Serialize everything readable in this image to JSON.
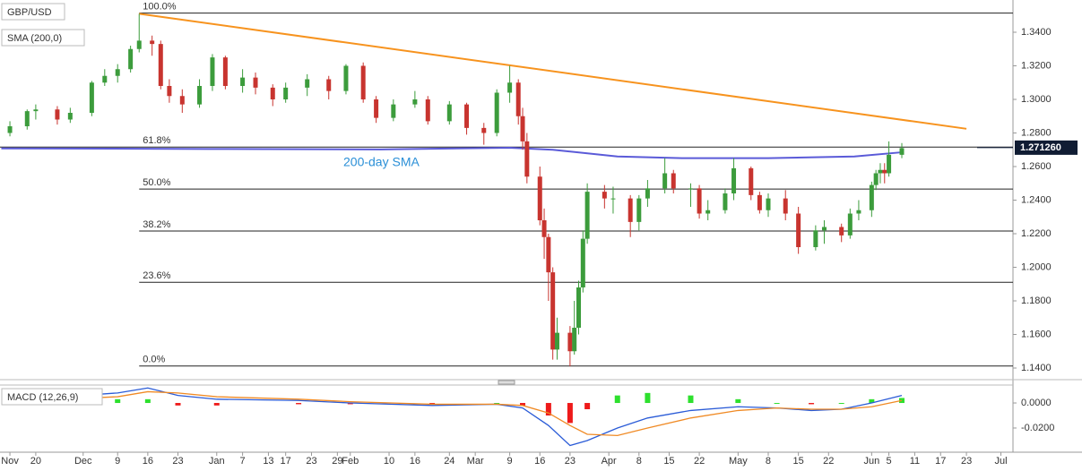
{
  "chart_data": [
    {
      "type": "candlestick",
      "legend": [
        "GBP/USD",
        "SMA (200,0)"
      ],
      "annotation": "200-day SMA",
      "up_color": "#3c9c3c",
      "down_color": "#c8342f",
      "xlim": [
        11.7,
        246.8
      ],
      "ylim": [
        1.1352,
        1.3592
      ],
      "xticks": [
        {
          "value": 14,
          "label": "Nov"
        },
        {
          "value": 20,
          "label": "20"
        },
        {
          "value": 31,
          "label": "Dec"
        },
        {
          "value": 39,
          "label": "9"
        },
        {
          "value": 46,
          "label": "16"
        },
        {
          "value": 53,
          "label": "23"
        },
        {
          "value": 62,
          "label": "Jan"
        },
        {
          "value": 68,
          "label": "7"
        },
        {
          "value": 74,
          "label": "13"
        },
        {
          "value": 78,
          "label": "17"
        },
        {
          "value": 84,
          "label": "23"
        },
        {
          "value": 90,
          "label": "29"
        },
        {
          "value": 93,
          "label": "Feb"
        },
        {
          "value": 102,
          "label": "10"
        },
        {
          "value": 108,
          "label": "16"
        },
        {
          "value": 116,
          "label": "24"
        },
        {
          "value": 122,
          "label": "Mar"
        },
        {
          "value": 130,
          "label": "9"
        },
        {
          "value": 137,
          "label": "16"
        },
        {
          "value": 144,
          "label": "23"
        },
        {
          "value": 153,
          "label": "Apr"
        },
        {
          "value": 160,
          "label": "8"
        },
        {
          "value": 167,
          "label": "15"
        },
        {
          "value": 174,
          "label": "22"
        },
        {
          "value": 183,
          "label": "May"
        },
        {
          "value": 190,
          "label": "8"
        },
        {
          "value": 197,
          "label": "15"
        },
        {
          "value": 204,
          "label": "22"
        },
        {
          "value": 214,
          "label": "Jun"
        },
        {
          "value": 218,
          "label": "5"
        },
        {
          "value": 224,
          "label": "11"
        },
        {
          "value": 230,
          "label": "17"
        },
        {
          "value": 236,
          "label": "23"
        },
        {
          "value": 244,
          "label": "Jul"
        }
      ],
      "yticks": [
        {
          "value": 1.34,
          "label": "1.3400"
        },
        {
          "value": 1.32,
          "label": "1.3200"
        },
        {
          "value": 1.3,
          "label": "1.3000"
        },
        {
          "value": 1.28,
          "label": "1.2800"
        },
        {
          "value": 1.26,
          "label": "1.2600"
        },
        {
          "value": 1.24,
          "label": "1.2400"
        },
        {
          "value": 1.22,
          "label": "1.2200"
        },
        {
          "value": 1.2,
          "label": "1.2000"
        },
        {
          "value": 1.18,
          "label": "1.1800"
        },
        {
          "value": 1.16,
          "label": "1.1600"
        },
        {
          "value": 1.14,
          "label": "1.1400"
        }
      ],
      "last_price": {
        "value": 1.27126,
        "label": "1.271260"
      },
      "fib_start": 44,
      "fib": [
        {
          "label": "100.0%",
          "price": 1.3514
        },
        {
          "label": "61.8%",
          "price": 1.2716
        },
        {
          "label": "50.0%",
          "price": 1.2466
        },
        {
          "label": "38.2%",
          "price": 1.2216
        },
        {
          "label": "23.6%",
          "price": 1.1911
        },
        {
          "label": "0.0%",
          "price": 1.1412
        }
      ],
      "trendline": {
        "color": "#f7931e",
        "x": [
          44,
          236
        ],
        "y": [
          1.351,
          1.2825
        ]
      },
      "sma": {
        "color": "#5a5ad8",
        "x": [
          12,
          60,
          100,
          130,
          140,
          155,
          170,
          190,
          210,
          221
        ],
        "y": [
          1.2708,
          1.2705,
          1.2702,
          1.2712,
          1.27,
          1.266,
          1.265,
          1.265,
          1.266,
          1.2685
        ]
      },
      "candles": {
        "x": [
          14,
          18,
          20,
          25,
          28,
          33,
          36,
          39,
          42,
          44,
          47,
          49,
          51,
          54,
          58,
          61,
          64,
          68,
          71,
          75,
          78,
          83,
          88,
          92,
          96,
          99,
          103,
          108,
          111,
          116,
          120,
          124,
          127,
          130,
          132,
          133,
          134,
          137,
          138,
          139,
          140,
          141,
          144,
          145,
          146,
          147,
          148,
          152,
          154,
          158,
          160,
          162,
          166,
          168,
          172,
          174,
          176,
          180,
          182,
          186,
          188,
          190,
          194,
          197,
          201,
          203,
          207,
          209,
          211,
          214,
          215,
          216,
          217,
          218,
          221
        ],
        "open": [
          1.28,
          1.284,
          1.293,
          1.294,
          1.288,
          1.292,
          1.31,
          1.314,
          1.318,
          1.33,
          1.335,
          1.333,
          1.308,
          1.302,
          1.297,
          1.308,
          1.325,
          1.308,
          1.313,
          1.307,
          1.3,
          1.307,
          1.312,
          1.305,
          1.32,
          1.3,
          1.289,
          1.297,
          1.3,
          1.287,
          1.297,
          1.283,
          1.28,
          1.304,
          1.31,
          1.29,
          1.275,
          1.254,
          1.228,
          1.218,
          1.197,
          1.151,
          1.161,
          1.15,
          1.164,
          1.188,
          1.217,
          1.245,
          1.241,
          1.241,
          1.227,
          1.241,
          1.247,
          1.256,
          1.247,
          1.247,
          1.232,
          1.234,
          1.244,
          1.259,
          1.243,
          1.234,
          1.241,
          1.232,
          1.212,
          1.222,
          1.224,
          1.219,
          1.232,
          1.234,
          1.249,
          1.256,
          1.258,
          1.256,
          1.267
        ],
        "high": [
          1.287,
          1.294,
          1.297,
          1.296,
          1.295,
          1.311,
          1.318,
          1.321,
          1.332,
          1.351,
          1.338,
          1.335,
          1.312,
          1.306,
          1.312,
          1.327,
          1.326,
          1.318,
          1.316,
          1.309,
          1.31,
          1.315,
          1.314,
          1.321,
          1.322,
          1.302,
          1.3,
          1.305,
          1.302,
          1.299,
          1.298,
          1.286,
          1.306,
          1.32,
          1.312,
          1.295,
          1.28,
          1.26,
          1.235,
          1.22,
          1.2,
          1.17,
          1.165,
          1.18,
          1.192,
          1.222,
          1.25,
          1.249,
          1.248,
          1.243,
          1.243,
          1.252,
          1.265,
          1.258,
          1.25,
          1.249,
          1.24,
          1.247,
          1.265,
          1.26,
          1.245,
          1.244,
          1.246,
          1.236,
          1.225,
          1.228,
          1.226,
          1.235,
          1.24,
          1.251,
          1.258,
          1.262,
          1.262,
          1.275,
          1.274
        ],
        "low": [
          1.278,
          1.282,
          1.288,
          1.285,
          1.286,
          1.29,
          1.308,
          1.31,
          1.316,
          1.328,
          1.326,
          1.306,
          1.298,
          1.292,
          1.295,
          1.305,
          1.306,
          1.304,
          1.303,
          1.296,
          1.298,
          1.302,
          1.3,
          1.303,
          1.298,
          1.286,
          1.287,
          1.295,
          1.285,
          1.285,
          1.279,
          1.273,
          1.278,
          1.298,
          1.285,
          1.27,
          1.25,
          1.225,
          1.205,
          1.18,
          1.145,
          1.145,
          1.141,
          1.148,
          1.16,
          1.185,
          1.214,
          1.235,
          1.232,
          1.218,
          1.222,
          1.236,
          1.244,
          1.244,
          1.236,
          1.229,
          1.228,
          1.232,
          1.24,
          1.24,
          1.232,
          1.23,
          1.228,
          1.208,
          1.21,
          1.214,
          1.215,
          1.217,
          1.228,
          1.23,
          1.246,
          1.25,
          1.25,
          1.254,
          1.265
        ],
        "close": [
          1.284,
          1.293,
          1.294,
          1.288,
          1.292,
          1.31,
          1.314,
          1.318,
          1.33,
          1.335,
          1.333,
          1.308,
          1.302,
          1.297,
          1.308,
          1.325,
          1.308,
          1.313,
          1.307,
          1.3,
          1.307,
          1.312,
          1.305,
          1.32,
          1.3,
          1.289,
          1.297,
          1.3,
          1.287,
          1.297,
          1.283,
          1.28,
          1.304,
          1.31,
          1.29,
          1.275,
          1.254,
          1.228,
          1.218,
          1.197,
          1.151,
          1.161,
          1.15,
          1.164,
          1.188,
          1.217,
          1.245,
          1.241,
          1.241,
          1.227,
          1.241,
          1.247,
          1.256,
          1.247,
          1.247,
          1.232,
          1.234,
          1.244,
          1.259,
          1.243,
          1.234,
          1.241,
          1.232,
          1.212,
          1.222,
          1.224,
          1.219,
          1.232,
          1.234,
          1.249,
          1.256,
          1.258,
          1.256,
          1.267,
          1.271
        ]
      }
    },
    {
      "type": "macd",
      "legend": "MACD (12,26,9)",
      "ylim": [
        -0.0379,
        0.0129
      ],
      "yticks": [
        {
          "value": 0,
          "label": "0.0000"
        },
        {
          "value": -0.02,
          "label": "-0.0200"
        }
      ],
      "x": [
        14,
        39,
        46,
        53,
        62,
        81,
        93,
        112,
        127,
        133,
        139,
        144,
        148,
        155,
        162,
        172,
        183,
        192,
        200,
        207,
        214,
        221
      ],
      "series": [
        {
          "name": "MACD",
          "color": "#2a5bd7",
          "values": [
            0.002,
            0.008,
            0.012,
            0.006,
            0.003,
            0.002,
            0,
            -0.002,
            -0.001,
            -0.004,
            -0.018,
            -0.034,
            -0.03,
            -0.02,
            -0.012,
            -0.006,
            -0.003,
            -0.004,
            -0.006,
            -0.005,
            0,
            0.006
          ]
        },
        {
          "name": "Signal",
          "color": "#f08a24",
          "values": [
            0.001,
            0.005,
            0.009,
            0.008,
            0.005,
            0.003,
            0.001,
            -0.001,
            -0.001,
            -0.002,
            -0.008,
            -0.018,
            -0.025,
            -0.026,
            -0.02,
            -0.012,
            -0.006,
            -0.004,
            -0.005,
            -0.005,
            -0.003,
            0.002
          ]
        }
      ],
      "histogram": {
        "up_color": "#2ee02e",
        "down_color": "#ee1a1a",
        "values": [
          0.001,
          0.003,
          0.003,
          -0.002,
          -0.002,
          -0.001,
          -0.001,
          -0.001,
          0,
          -0.002,
          -0.01,
          -0.016,
          -0.005,
          0.006,
          0.008,
          0.006,
          0.003,
          0,
          -0.001,
          0,
          0.003,
          0.004
        ]
      }
    }
  ]
}
